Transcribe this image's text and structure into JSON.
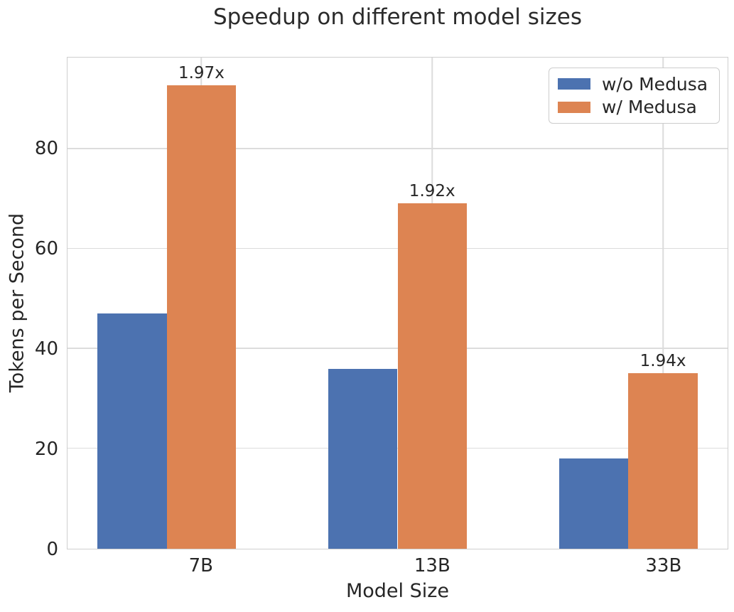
{
  "chart_data": {
    "type": "bar",
    "title": "Speedup on different model sizes",
    "xlabel": "Model Size",
    "ylabel": "Tokens per Second",
    "categories": [
      "7B",
      "13B",
      "33B"
    ],
    "series": [
      {
        "name": "w/o Medusa",
        "color": "#4C72B0",
        "values": [
          47.1,
          36.0,
          18.1
        ]
      },
      {
        "name": "w/ Medusa",
        "color": "#DD8452",
        "values": [
          92.8,
          69.2,
          35.1
        ],
        "bar_labels": [
          "1.97x",
          "1.92x",
          "1.94x"
        ]
      }
    ],
    "ylim": [
      0,
      98.3
    ],
    "yticks": [
      0,
      20,
      40,
      60,
      80
    ],
    "grid": true,
    "legend_position": "upper right",
    "background": "#ffffff",
    "text_color": "#262626"
  }
}
